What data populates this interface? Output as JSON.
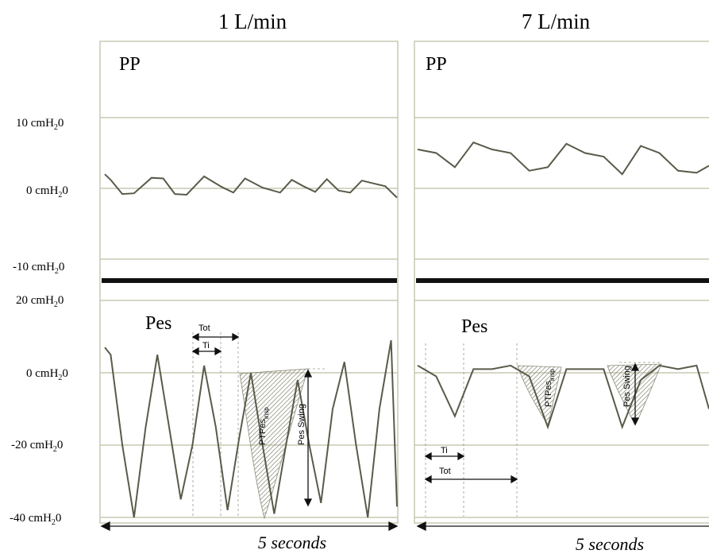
{
  "chart_data": [
    {
      "type": "line",
      "title": "1 L/min",
      "panels": [
        {
          "label": "PP",
          "ylim": [
            -10,
            10
          ],
          "yticks": [
            {
              "value": 10,
              "label": "10 cmH2O"
            },
            {
              "value": 0,
              "label": "0 cmH2O"
            },
            {
              "value": -10,
              "label": "-10 cmH2O"
            }
          ],
          "x": [
            0,
            0.1,
            0.3,
            0.5,
            0.8,
            1.0,
            1.2,
            1.4,
            1.7,
            2.0,
            2.2,
            2.4,
            2.7,
            3.0,
            3.2,
            3.4,
            3.6,
            3.8,
            4.0,
            4.2,
            4.4,
            4.6,
            4.8,
            5.0
          ],
          "y": [
            2,
            1.2,
            -0.8,
            -0.7,
            1.5,
            1.4,
            -0.8,
            -0.9,
            1.7,
            0.2,
            -0.6,
            1.4,
            0.1,
            -0.6,
            1.2,
            0.3,
            -0.5,
            1.3,
            -0.3,
            -0.6,
            1.1,
            0.7,
            0.3,
            -1.3
          ]
        },
        {
          "label": "Pes",
          "ylim": [
            -40,
            20
          ],
          "yticks": [
            {
              "value": 20,
              "label": "20 cmH2O"
            },
            {
              "value": 0,
              "label": "0 cmH2O"
            },
            {
              "value": -20,
              "label": "-20 cmH2O"
            },
            {
              "value": -40,
              "label": "-40 cmH2O"
            }
          ],
          "x": [
            0,
            0.1,
            0.3,
            0.5,
            0.7,
            0.9,
            1.1,
            1.3,
            1.5,
            1.7,
            1.9,
            2.1,
            2.3,
            2.5,
            2.7,
            2.9,
            3.1,
            3.3,
            3.5,
            3.7,
            3.9,
            4.1,
            4.3,
            4.5,
            4.7,
            4.9,
            5.0
          ],
          "y": [
            7,
            5,
            -20,
            -40,
            -15,
            5,
            -15,
            -35,
            -20,
            2,
            -15,
            -38,
            -18,
            0,
            -20,
            -39,
            -20,
            -2,
            -20,
            -36,
            -10,
            3,
            -20,
            -40,
            -10,
            9,
            -37
          ],
          "annotations": [
            "Ttot",
            "Ti",
            "PTPes_insp",
            "Pes Swing"
          ]
        }
      ],
      "xlabel": "5 seconds"
    },
    {
      "type": "line",
      "title": "7 L/min",
      "panels": [
        {
          "label": "PP",
          "ylim": [
            -10,
            10
          ],
          "x": [
            0,
            0.3,
            0.6,
            0.9,
            1.2,
            1.5,
            1.8,
            2.1,
            2.4,
            2.7,
            3.0,
            3.3,
            3.6,
            3.9,
            4.2,
            4.5,
            4.7
          ],
          "y": [
            5.5,
            5,
            3,
            6.5,
            5.5,
            5,
            2.5,
            3,
            6.3,
            5,
            4.5,
            2,
            6,
            5,
            2.5,
            2.2,
            3.2
          ]
        },
        {
          "label": "Pes",
          "ylim": [
            -40,
            20
          ],
          "x": [
            0,
            0.3,
            0.6,
            0.9,
            1.2,
            1.5,
            1.8,
            2.1,
            2.4,
            2.7,
            3.0,
            3.3,
            3.6,
            3.9,
            4.2,
            4.5,
            4.7
          ],
          "y": [
            2,
            -1,
            -12,
            1,
            1,
            2,
            -1,
            -15,
            1,
            1,
            1,
            -15,
            -2,
            2,
            1,
            2,
            -10
          ],
          "annotations": [
            "Ti",
            "Ttot",
            "PTPes_insp",
            "Pes Swing"
          ]
        }
      ],
      "xlabel": "5 seconds"
    }
  ],
  "text": {
    "title_left": "1 L/min",
    "title_right": "7 L/min",
    "pp_left": "PP",
    "pp_right": "PP",
    "pes_left": "Pes",
    "pes_right": "Pes",
    "tick_10": "10 cmH",
    "tick_0a": "0 cmH",
    "tick_m10": "-10 cmH",
    "tick_20": "20 cmH",
    "tick_0b": "0 cmH",
    "tick_m20": "-20 cmH",
    "tick_m40": "-40 cmH",
    "unit_sub": "2",
    "unit_tail": "0",
    "ttot_left": "Tot",
    "ti_left": "Ti",
    "ttot_right": "Tot",
    "ti_right": "Ti",
    "ptp_main": "PTPes",
    "ptp_sub": "insp",
    "swing": "Pes Swing",
    "seconds_left": "5 seconds",
    "seconds_right": "5 seconds"
  },
  "colors": {
    "trace": "#5a5a4a",
    "grid": "#c8c8b4",
    "divider": "#111111",
    "hatch": "#8a8a7a"
  }
}
